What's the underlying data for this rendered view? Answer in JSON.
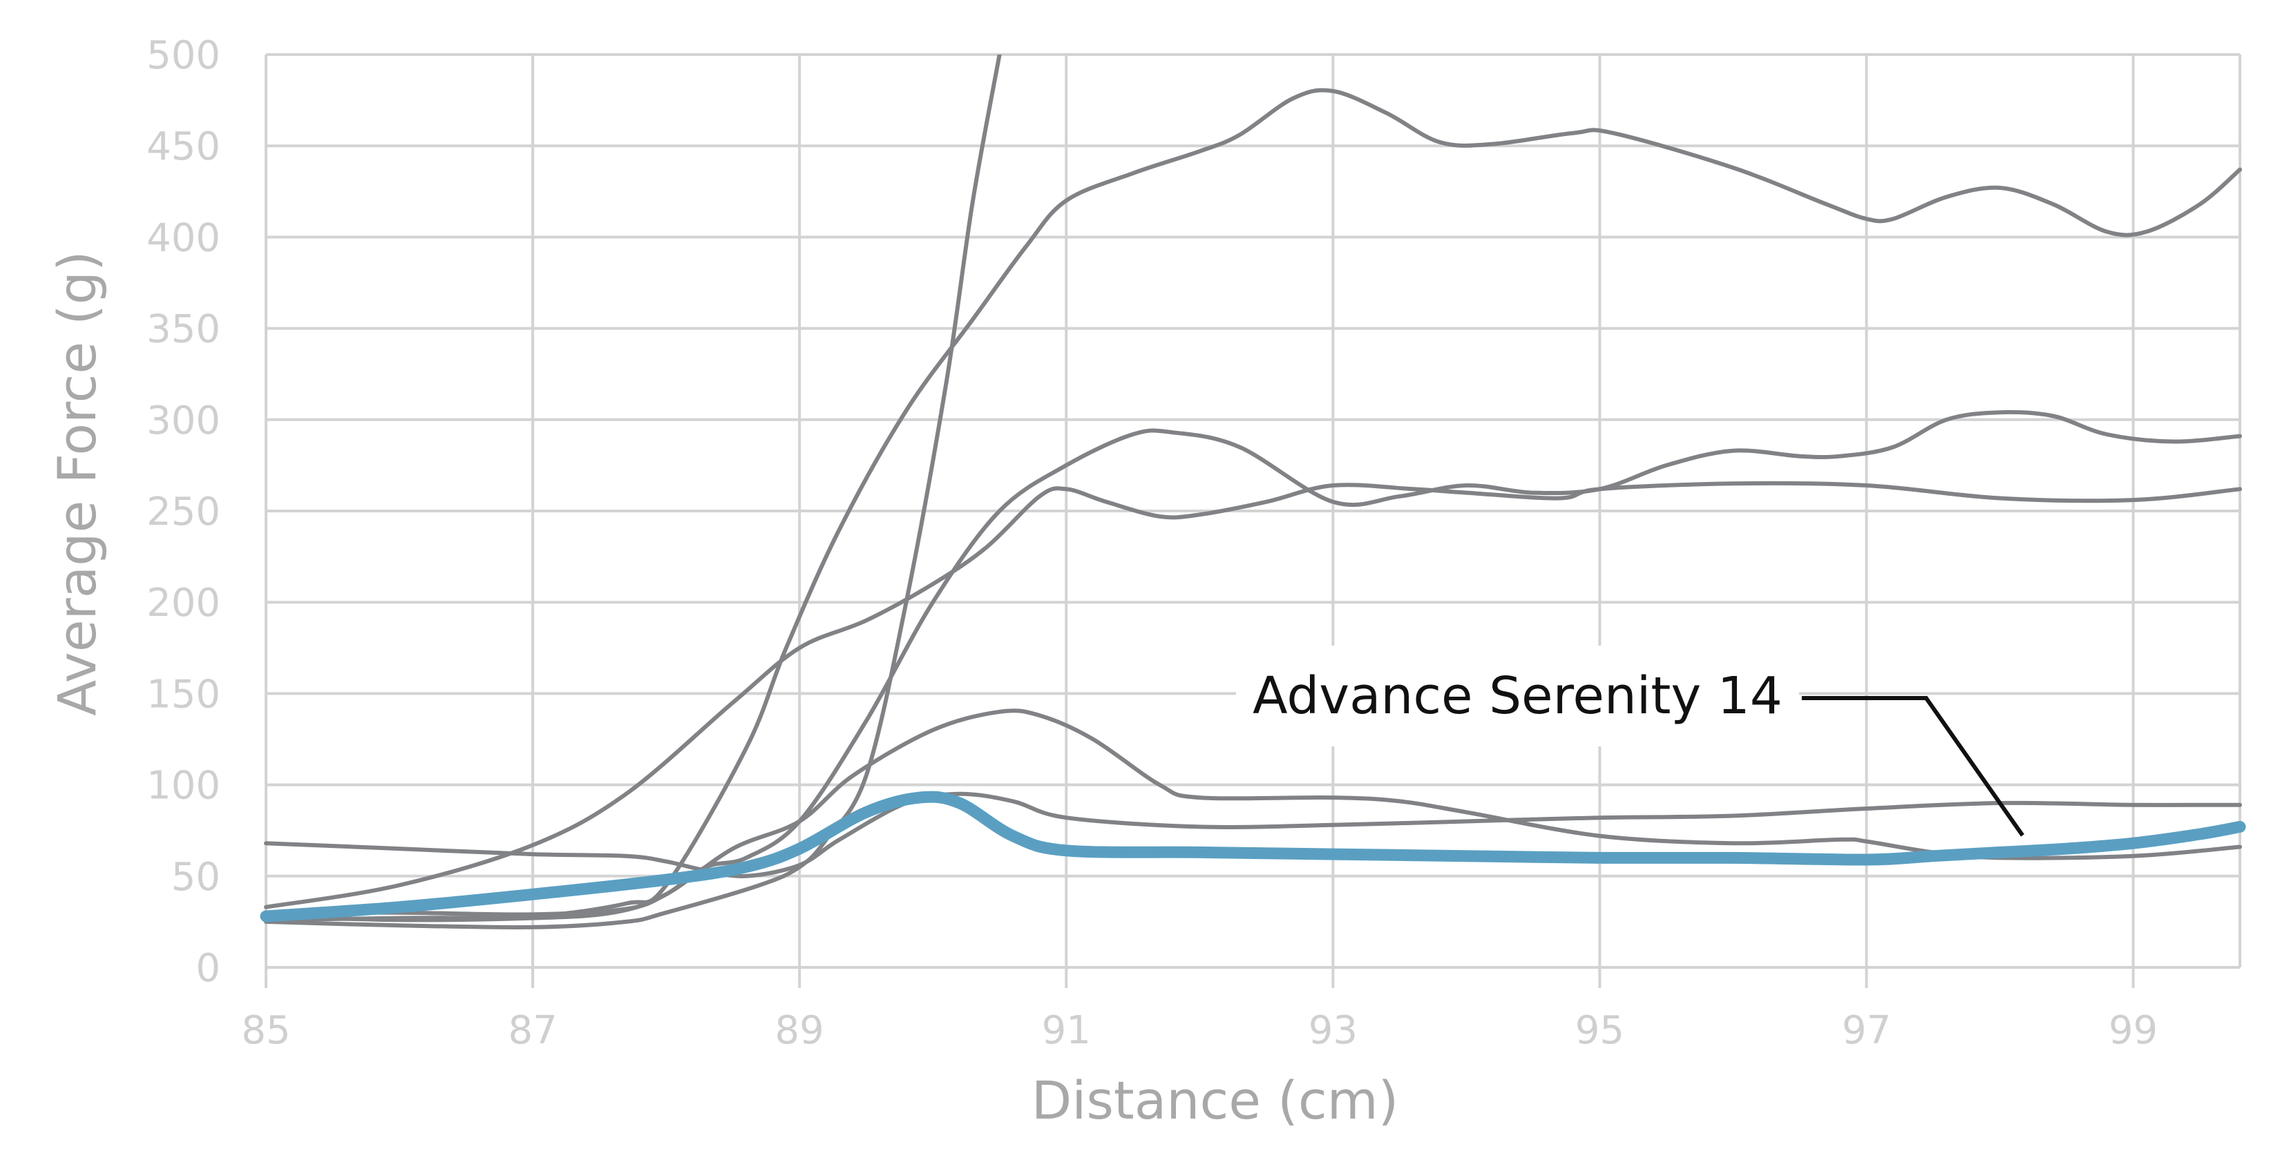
{
  "chart_data": {
    "type": "line",
    "title": "",
    "xlabel": "Distance (cm)",
    "ylabel": "Average Force (g)",
    "xlim": [
      85,
      99.8
    ],
    "ylim": [
      0,
      500
    ],
    "x_ticks": [
      "85",
      "87",
      "89",
      "91",
      "93",
      "95",
      "97",
      "99"
    ],
    "y_ticks": [
      "0",
      "50",
      "100",
      "150",
      "200",
      "250",
      "300",
      "350",
      "400",
      "450",
      "500"
    ],
    "grid": true,
    "legend": "none",
    "colors": {
      "highlight": "#5a9fc2",
      "other": "#808285",
      "grid": "#d3d3d3",
      "tick": "#cfcfcf",
      "axis_title": "#a8a8a8",
      "annotation": "#111111"
    },
    "annotation": {
      "text": "Advance Serenity 14",
      "series_index": 0,
      "target": [
        98.3,
        67
      ]
    },
    "series": [
      {
        "highlight": true,
        "points": [
          [
            85,
            28
          ],
          [
            86,
            33
          ],
          [
            87,
            40
          ],
          [
            88,
            48
          ],
          [
            88.6,
            55
          ],
          [
            89,
            65
          ],
          [
            89.5,
            85
          ],
          [
            89.9,
            93
          ],
          [
            90.2,
            90
          ],
          [
            90.6,
            72
          ],
          [
            91,
            64
          ],
          [
            92,
            63
          ],
          [
            93,
            62
          ],
          [
            94,
            61
          ],
          [
            95,
            60
          ],
          [
            96,
            60
          ],
          [
            97,
            59
          ],
          [
            97.5,
            61
          ],
          [
            98,
            63
          ],
          [
            98.5,
            65
          ],
          [
            99,
            68
          ],
          [
            99.5,
            73
          ],
          [
            99.8,
            77
          ]
        ]
      },
      {
        "points": [
          [
            85,
            68
          ],
          [
            86,
            65
          ],
          [
            87,
            62
          ],
          [
            87.7,
            61
          ],
          [
            88,
            58
          ],
          [
            88.3,
            53
          ],
          [
            88.6,
            50
          ],
          [
            89,
            56
          ],
          [
            89.3,
            70
          ],
          [
            89.8,
            90
          ],
          [
            90.2,
            95
          ],
          [
            90.6,
            91
          ],
          [
            91,
            82
          ],
          [
            92,
            77
          ],
          [
            93,
            78
          ],
          [
            94,
            80
          ],
          [
            95,
            82
          ],
          [
            96,
            83
          ],
          [
            97,
            87
          ],
          [
            98,
            90
          ],
          [
            99,
            89
          ],
          [
            99.8,
            89
          ]
        ]
      },
      {
        "points": [
          [
            85,
            28
          ],
          [
            86,
            26
          ],
          [
            87,
            27
          ],
          [
            87.6,
            30
          ],
          [
            88,
            40
          ],
          [
            88.5,
            65
          ],
          [
            89,
            80
          ],
          [
            89.4,
            105
          ],
          [
            90,
            130
          ],
          [
            90.5,
            140
          ],
          [
            90.8,
            138
          ],
          [
            91.2,
            125
          ],
          [
            91.7,
            100
          ],
          [
            92,
            93
          ],
          [
            93,
            93
          ],
          [
            93.5,
            91
          ],
          [
            94,
            85
          ],
          [
            95,
            72
          ],
          [
            96,
            68
          ],
          [
            96.8,
            70
          ],
          [
            97,
            69
          ],
          [
            97.5,
            63
          ],
          [
            98,
            60
          ],
          [
            99,
            61
          ],
          [
            99.8,
            66
          ]
        ]
      },
      {
        "points": [
          [
            85,
            30
          ],
          [
            86,
            30
          ],
          [
            87,
            29
          ],
          [
            87.7,
            32
          ],
          [
            88,
            40
          ],
          [
            88.3,
            55
          ],
          [
            88.6,
            60
          ],
          [
            89,
            80
          ],
          [
            89.5,
            135
          ],
          [
            90,
            200
          ],
          [
            90.5,
            250
          ],
          [
            91,
            275
          ],
          [
            91.5,
            292
          ],
          [
            91.8,
            293
          ],
          [
            92.3,
            285
          ],
          [
            93,
            255
          ],
          [
            93.5,
            258
          ],
          [
            94,
            264
          ],
          [
            94.5,
            260
          ],
          [
            95,
            262
          ],
          [
            95.5,
            275
          ],
          [
            96,
            283
          ],
          [
            96.5,
            280
          ],
          [
            96.8,
            280
          ],
          [
            97.2,
            285
          ],
          [
            97.6,
            300
          ],
          [
            98,
            304
          ],
          [
            98.4,
            302
          ],
          [
            98.8,
            292
          ],
          [
            99.3,
            288
          ],
          [
            99.8,
            291
          ]
        ]
      },
      {
        "points": [
          [
            85,
            33
          ],
          [
            86,
            45
          ],
          [
            87,
            67
          ],
          [
            87.7,
            95
          ],
          [
            88.5,
            145
          ],
          [
            89,
            175
          ],
          [
            89.5,
            190
          ],
          [
            90,
            210
          ],
          [
            90.4,
            230
          ],
          [
            90.8,
            258
          ],
          [
            91,
            262
          ],
          [
            91.3,
            255
          ],
          [
            91.7,
            247
          ],
          [
            92,
            248
          ],
          [
            92.5,
            255
          ],
          [
            93,
            264
          ],
          [
            93.6,
            262
          ],
          [
            94,
            260
          ],
          [
            94.7,
            257
          ],
          [
            95,
            262
          ],
          [
            96,
            265
          ],
          [
            97,
            264
          ],
          [
            98,
            257
          ],
          [
            99,
            256
          ],
          [
            99.8,
            262
          ]
        ]
      },
      {
        "points": [
          [
            85,
            25
          ],
          [
            86,
            23
          ],
          [
            87,
            22
          ],
          [
            87.7,
            25
          ],
          [
            88,
            30
          ],
          [
            88.7,
            45
          ],
          [
            89,
            55
          ],
          [
            89.2,
            70
          ],
          [
            89.5,
            105
          ],
          [
            89.8,
            200
          ],
          [
            90.1,
            320
          ],
          [
            90.3,
            420
          ],
          [
            90.5,
            500
          ]
        ]
      },
      {
        "points": [
          [
            85,
            26
          ],
          [
            86,
            27
          ],
          [
            87,
            28
          ],
          [
            87.7,
            35
          ],
          [
            88,
            45
          ],
          [
            88.6,
            120
          ],
          [
            88.9,
            175
          ],
          [
            89.3,
            240
          ],
          [
            89.8,
            305
          ],
          [
            90.3,
            355
          ],
          [
            90.7,
            395
          ],
          [
            91,
            420
          ],
          [
            91.5,
            435
          ],
          [
            92,
            447
          ],
          [
            92.3,
            456
          ],
          [
            92.7,
            476
          ],
          [
            93,
            480
          ],
          [
            93.4,
            468
          ],
          [
            93.8,
            452
          ],
          [
            94.2,
            451
          ],
          [
            94.8,
            457
          ],
          [
            95.1,
            457
          ],
          [
            96,
            438
          ],
          [
            96.7,
            418
          ],
          [
            97,
            410
          ],
          [
            97.2,
            410
          ],
          [
            97.6,
            422
          ],
          [
            98,
            427
          ],
          [
            98.4,
            418
          ],
          [
            98.8,
            403
          ],
          [
            99.1,
            403
          ],
          [
            99.5,
            418
          ],
          [
            99.8,
            437
          ]
        ]
      }
    ]
  }
}
